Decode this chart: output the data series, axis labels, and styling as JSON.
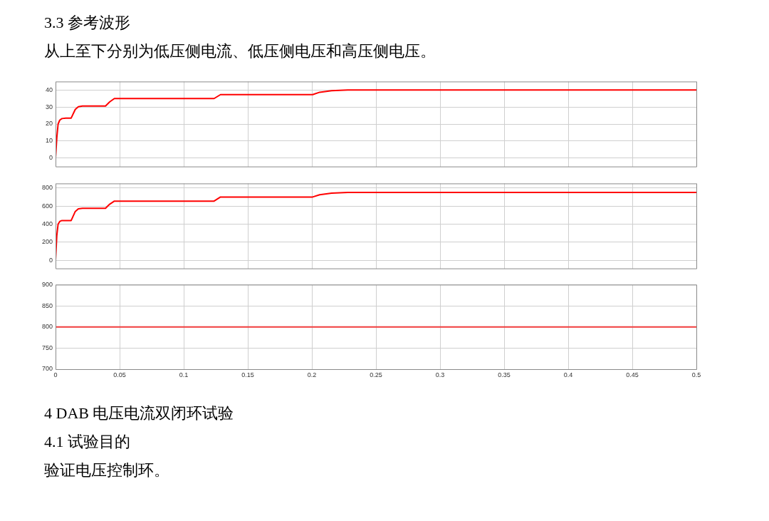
{
  "chart_data": [
    {
      "type": "line",
      "title": "3.3 参考波形",
      "subtitle": "从上至下分别为低压侧电流、低压侧电压和高压侧电压。",
      "series": [
        {
          "color": "#ff0000",
          "x": [
            0,
            0.001,
            0.002,
            0.0033,
            0.005,
            0.008,
            0.0122,
            0.0154,
            0.0178,
            0.021,
            0.039,
            0.0422,
            0.0459,
            0.1237,
            0.1287,
            0.2006,
            0.2061,
            0.2154,
            0.228,
            0.5
          ],
          "values": [
            0,
            12,
            20,
            22.3,
            23.2,
            23.5,
            23.5,
            28.6,
            30.2,
            30.6,
            30.6,
            33,
            35,
            35,
            37.3,
            37.3,
            38.7,
            39.6,
            40,
            40
          ]
        }
      ],
      "xlim": [
        0,
        0.5
      ],
      "xticks": [
        0,
        0.05,
        0.1,
        0.15,
        0.2,
        0.25,
        0.3,
        0.35,
        0.4,
        0.45,
        0.5
      ],
      "ylim": [
        -5,
        45
      ],
      "yticks": [
        0,
        10,
        20,
        30,
        40
      ],
      "grid": true,
      "legend": false,
      "marker": "none",
      "line_style": "solid",
      "tick_labels": "y"
    },
    {
      "type": "line",
      "series": [
        {
          "color": "#ff0000",
          "x": [
            0,
            0.001,
            0.002,
            0.0033,
            0.005,
            0.008,
            0.0122,
            0.0154,
            0.0178,
            0.021,
            0.039,
            0.0422,
            0.0459,
            0.1237,
            0.1287,
            0.2006,
            0.2061,
            0.2154,
            0.228,
            0.5
          ],
          "values": [
            0,
            275,
            400,
            430,
            440,
            440,
            440,
            540,
            570,
            575,
            575,
            620,
            655,
            655,
            700,
            700,
            725,
            742,
            750,
            750
          ]
        }
      ],
      "xlim": [
        0,
        0.5
      ],
      "xticks": [
        0,
        0.05,
        0.1,
        0.15,
        0.2,
        0.25,
        0.3,
        0.35,
        0.4,
        0.45,
        0.5
      ],
      "ylim": [
        -90,
        850
      ],
      "yticks": [
        0,
        200,
        400,
        600,
        800
      ],
      "grid": true,
      "legend": false,
      "marker": "none",
      "line_style": "solid",
      "tick_labels": "y"
    },
    {
      "type": "line",
      "series": [
        {
          "color": "#f03c3c",
          "x": [
            0,
            0.5
          ],
          "values": [
            800,
            800
          ]
        }
      ],
      "xlim": [
        0,
        0.5
      ],
      "xticks": [
        0,
        0.05,
        0.1,
        0.15,
        0.2,
        0.25,
        0.3,
        0.35,
        0.4,
        0.45,
        0.5
      ],
      "ylim": [
        700,
        900
      ],
      "yticks": [
        700,
        750,
        800,
        850,
        900
      ],
      "grid": true,
      "legend": false,
      "marker": "none",
      "line_style": "solid",
      "annotations": [
        "4 DAB 电压电流双闭环试验",
        "4.1 试验目的",
        "验证电压控制环。"
      ]
    }
  ]
}
